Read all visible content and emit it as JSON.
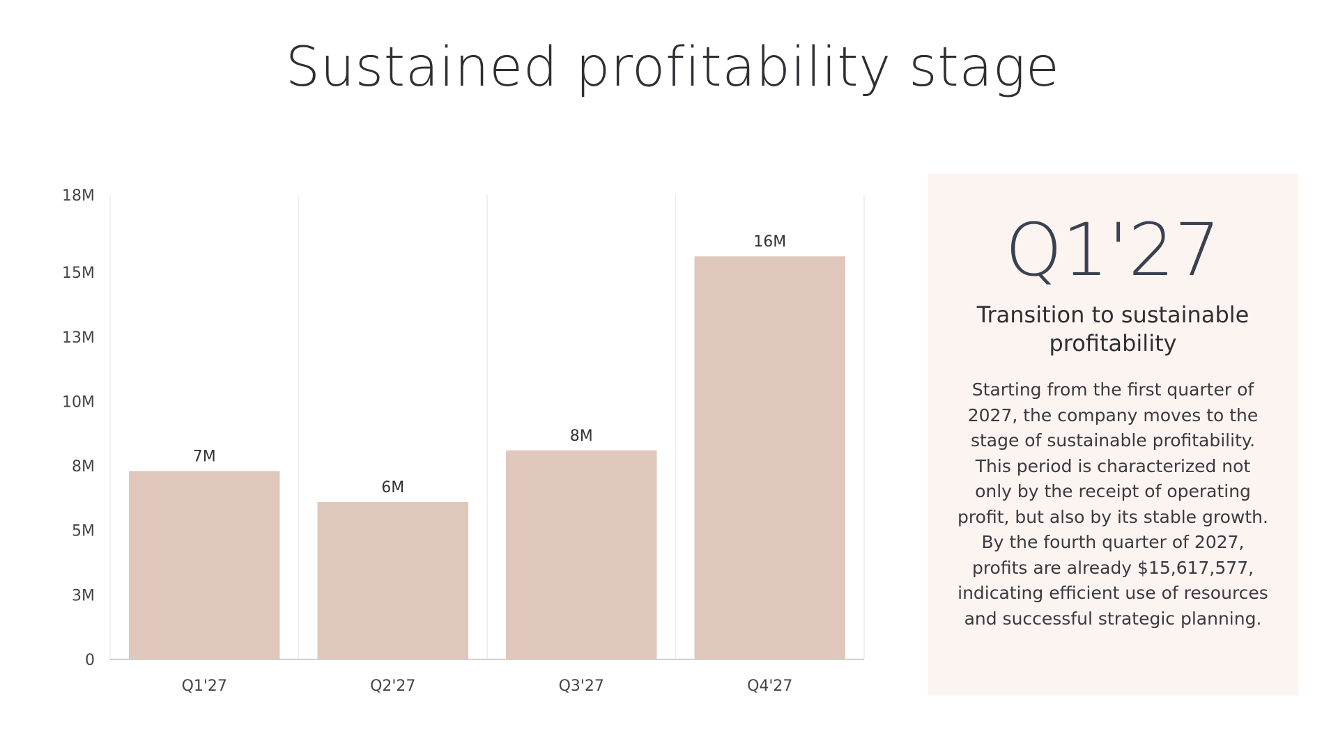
{
  "slide": {
    "title": "Sustained profitability stage"
  },
  "info_card": {
    "big_label": "Q1'27",
    "title": "Transition to sustainable profitability",
    "body": "Starting from the first quarter of 2027, the company moves to the stage of sustainable profitability. This period is characterized not only by the receipt of operating profit, but also by its stable growth. By the fourth quarter of 2027, profits are already $15,617,577, indicating efficient use of resources and successful strategic planning."
  },
  "chart_data": {
    "type": "bar",
    "categories": [
      "Q1'27",
      "Q2'27",
      "Q3'27",
      "Q4'27"
    ],
    "values": [
      7.3,
      6.1,
      8.1,
      15.62
    ],
    "data_labels": [
      "7M",
      "6M",
      "8M",
      "16M"
    ],
    "ylim": [
      0,
      18
    ],
    "y_ticks": [
      0,
      2.5,
      5,
      7.5,
      10,
      12.5,
      15,
      18
    ],
    "y_tick_labels": [
      "0",
      "3M",
      "5M",
      "8M",
      "10M",
      "13M",
      "15M",
      "18M"
    ],
    "grid": "vertical",
    "colors": {
      "bar": "#dfc8bb",
      "grid": "#ececec",
      "axis": "#cfcfcf",
      "tick_text": "#444444",
      "data_label_text": "#333333"
    }
  }
}
